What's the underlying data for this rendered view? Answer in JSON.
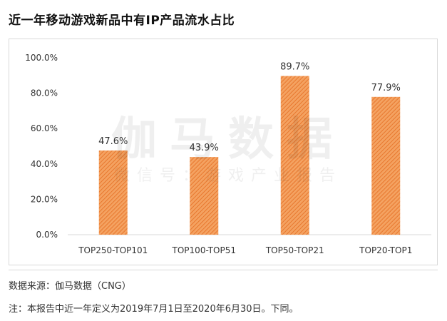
{
  "header": {
    "title": "近一年移动游戏新品中有IP产品流水占比"
  },
  "watermark": {
    "brand": "伽马数据",
    "subtitle": "微信号：游戏产业报告"
  },
  "colors": {
    "bar": "#f4a261",
    "bar_hatch": "#e8772e",
    "axis": "#d9d9d9"
  },
  "chart_data": {
    "type": "bar",
    "categories": [
      "TOP250-TOP101",
      "TOP100-TOP51",
      "TOP50-TOP21",
      "TOP20-TOP1"
    ],
    "values": [
      47.6,
      43.9,
      89.7,
      77.9
    ],
    "data_labels": [
      "47.6%",
      "43.9%",
      "89.7%",
      "77.9%"
    ],
    "yticks": [
      "0.0%",
      "20.0%",
      "40.0%",
      "60.0%",
      "80.0%",
      "100.0%"
    ],
    "ylim": [
      0,
      100
    ],
    "grid": false,
    "legend": "none"
  },
  "footer": {
    "source": "数据来源：伽马数据（CNG）",
    "note": "注：本报告中近一年定义为2019年7月1日至2020年6月30日。下同。"
  }
}
